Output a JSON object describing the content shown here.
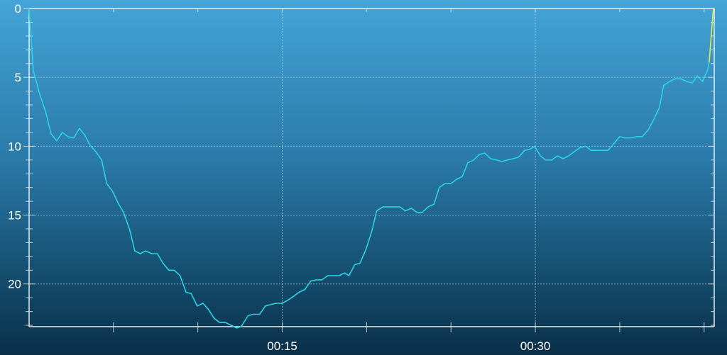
{
  "chart_data": {
    "type": "line",
    "title": "",
    "xlabel": "",
    "ylabel": "",
    "x_unit": "minutes",
    "xlim": [
      0,
      40.6
    ],
    "ylim": [
      0,
      23.1
    ],
    "y_inverted": true,
    "grid": true,
    "x_ticks": [
      {
        "value": 15,
        "label": "00:15"
      },
      {
        "value": 30,
        "label": "00:30"
      }
    ],
    "x_minor_ticks": [
      5,
      10,
      15,
      20,
      25,
      30,
      35,
      40
    ],
    "y_ticks": [
      {
        "value": 0,
        "label": "0"
      },
      {
        "value": 5,
        "label": "5"
      },
      {
        "value": 10,
        "label": "10"
      },
      {
        "value": 15,
        "label": "15"
      },
      {
        "value": 20,
        "label": "20"
      }
    ],
    "colors": {
      "line": "#2ad4e2",
      "ascent_end": "#e6ea3a",
      "axis": "#e8eef2",
      "grid": "#b8d8ea"
    },
    "series": [
      {
        "color": "#2ad4e2",
        "x": [
          0,
          0.08,
          0.25,
          0.6,
          1.0,
          1.3,
          1.64,
          1.97,
          2.3,
          2.65,
          2.98,
          3.3,
          3.6,
          3.95,
          4.3,
          4.6,
          4.96,
          5.3,
          5.6,
          5.97,
          6.26,
          6.6,
          6.9,
          7.27,
          7.6,
          7.94,
          8.28,
          8.6,
          8.95,
          9.3,
          9.6,
          9.96,
          10.3,
          10.6,
          10.97,
          11.3,
          11.64,
          11.97,
          12.3,
          12.56,
          12.98,
          13.3,
          13.66,
          14.0,
          14.3,
          14.66,
          15.0,
          15.3,
          15.67,
          16.0,
          16.34,
          16.68,
          17.0,
          17.35,
          17.7,
          18.0,
          18.36,
          18.7,
          18.95,
          19.3,
          19.6,
          19.96,
          20.3,
          20.6,
          20.97,
          21.3,
          21.64,
          21.97,
          22.3,
          22.65,
          22.98,
          23.3,
          23.65,
          24.0,
          24.3,
          24.66,
          25.0,
          25.34,
          25.67,
          26.0,
          26.34,
          26.68,
          27.0,
          27.35,
          27.7,
          28.0,
          28.36,
          28.7,
          29.0,
          29.37,
          29.7,
          29.96,
          30.3,
          30.6,
          30.97,
          31.3,
          31.64,
          31.97,
          32.3,
          32.65,
          33.0,
          33.3,
          33.65,
          34.0,
          34.3,
          34.66,
          35.0,
          35.34,
          35.67,
          36.0,
          36.34,
          36.7,
          37.0,
          37.35,
          37.6,
          37.95,
          38.3,
          38.6,
          38.97,
          39.3,
          39.6,
          39.9,
          40.2,
          40.3
        ],
        "y": [
          0,
          1.4,
          4.5,
          6.1,
          7.6,
          9.1,
          9.6,
          9.0,
          9.3,
          9.4,
          8.7,
          9.2,
          9.9,
          10.4,
          11.0,
          12.7,
          13.3,
          14.2,
          14.8,
          16.1,
          17.6,
          17.8,
          17.6,
          17.8,
          17.8,
          18.5,
          19.0,
          19.0,
          19.4,
          20.6,
          20.7,
          21.6,
          21.4,
          21.8,
          22.5,
          22.8,
          22.8,
          23.0,
          23.2,
          23.1,
          22.3,
          22.2,
          22.2,
          21.6,
          21.5,
          21.4,
          21.4,
          21.2,
          20.9,
          20.6,
          20.4,
          19.8,
          19.7,
          19.7,
          19.4,
          19.4,
          19.4,
          19.2,
          19.4,
          18.6,
          18.5,
          17.5,
          16.2,
          14.7,
          14.4,
          14.4,
          14.4,
          14.4,
          14.7,
          14.5,
          14.8,
          14.8,
          14.4,
          14.2,
          13.0,
          12.7,
          12.7,
          12.4,
          12.2,
          11.2,
          11.0,
          10.6,
          10.5,
          10.9,
          11.0,
          11.1,
          11.0,
          10.9,
          10.8,
          10.3,
          10.2,
          10.0,
          10.7,
          11.0,
          11.0,
          10.7,
          10.9,
          10.7,
          10.4,
          10.1,
          10.0,
          10.3,
          10.3,
          10.3,
          10.3,
          9.8,
          9.3,
          9.4,
          9.4,
          9.3,
          9.3,
          8.8,
          8.1,
          7.2,
          5.6,
          5.3,
          5.1,
          5.1,
          5.3,
          5.4,
          4.9,
          5.3,
          4.5,
          3.9
        ]
      },
      {
        "color": "#e6ea3a",
        "x": [
          40.3,
          40.55
        ],
        "y": [
          3.9,
          0
        ]
      }
    ]
  }
}
